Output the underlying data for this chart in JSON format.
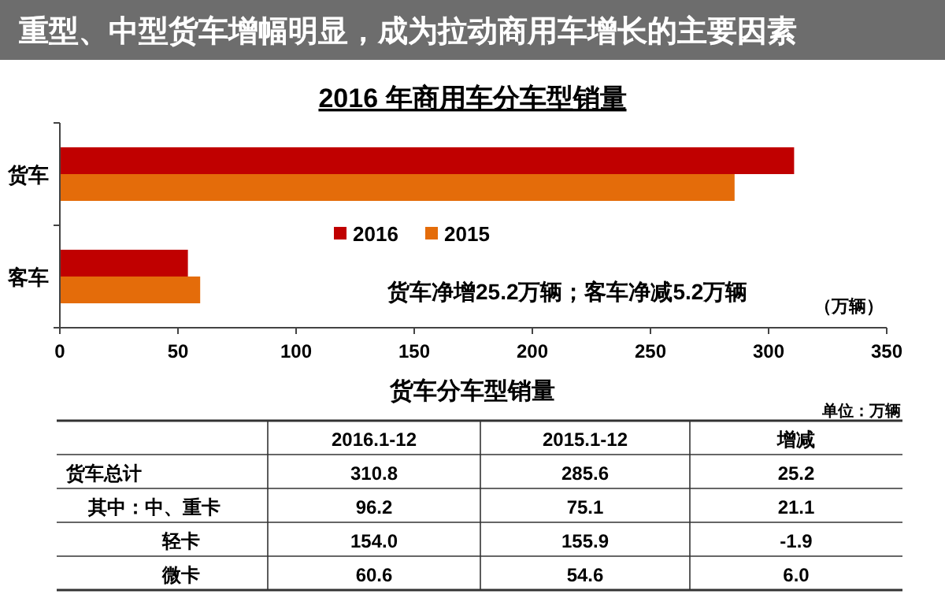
{
  "chart_data": [
    {
      "type": "bar",
      "orientation": "horizontal",
      "title": "2016 年商用车分车型销量",
      "xlabel": "（万辆）",
      "annotations": [
        "重型、中型货车增幅明显，成为拉动商用车增长的主要因素",
        "货车净增25.2万辆；客车净减5.2万辆"
      ],
      "categories": [
        "货车",
        "客车"
      ],
      "series": [
        {
          "name": "2016",
          "color": "#c00000",
          "values": [
            310.8,
            54.2
          ]
        },
        {
          "name": "2015",
          "color": "#e46c0a",
          "values": [
            285.6,
            59.4
          ]
        }
      ],
      "xlim": [
        0,
        350
      ],
      "xticks": [
        0,
        50,
        100,
        150,
        200,
        250,
        300,
        350
      ],
      "grid": false,
      "legend": "left"
    },
    {
      "type": "other",
      "title": "货车分车型销量",
      "subtitle": "单位：万辆",
      "categories": [
        "2016.1-12",
        "2015.1-12",
        "增减"
      ],
      "y_categories": [
        "货车总计",
        "其中：中、重卡",
        "轻卡",
        "微卡"
      ],
      "cell_labels": [
        [
          "310.8",
          "285.6",
          "25.2"
        ],
        [
          "96.2",
          "75.1",
          "21.1"
        ],
        [
          "154.0",
          "155.9",
          "-1.9"
        ],
        [
          "60.6",
          "54.6",
          "6.0"
        ]
      ]
    }
  ]
}
